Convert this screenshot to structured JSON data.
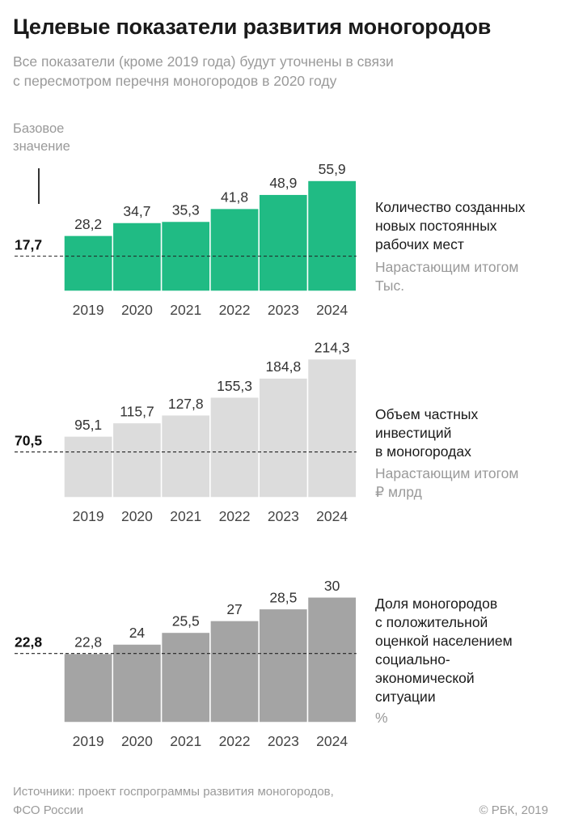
{
  "title": "Целевые показатели развития моногородов",
  "subtitle": [
    "Все показатели (кроме 2019 года) будут уточнены в связи",
    "с пересмотром перечня моногородов в 2020 году"
  ],
  "baseline_caption": [
    "Базовое",
    "значение"
  ],
  "footer": {
    "source": [
      "Источники: проект госпрограммы развития моногородов,",
      "ФСО России"
    ],
    "copyright": "© РБК, 2019"
  },
  "colors": {
    "green": "#20bb84",
    "light_gray": "#dcdcdc",
    "dark_gray": "#a4a4a4"
  },
  "chart_data": [
    {
      "type": "bar",
      "categories": [
        "2019",
        "2020",
        "2021",
        "2022",
        "2023",
        "2024"
      ],
      "values": [
        28.2,
        34.7,
        35.3,
        41.8,
        48.9,
        55.9
      ],
      "value_labels": [
        "28,2",
        "34,7",
        "35,3",
        "41,8",
        "48,9",
        "55,9"
      ],
      "baseline": 17.7,
      "baseline_label": "17,7",
      "description": [
        "Количество созданных",
        "новых постоянных",
        "рабочих мест"
      ],
      "unit": [
        "Нарастающим итогом",
        "Тыс."
      ],
      "color": "#20bb84"
    },
    {
      "type": "bar",
      "categories": [
        "2019",
        "2020",
        "2021",
        "2022",
        "2023",
        "2024"
      ],
      "values": [
        95.1,
        115.7,
        127.8,
        155.3,
        184.8,
        214.3
      ],
      "value_labels": [
        "95,1",
        "115,7",
        "127,8",
        "155,3",
        "184,8",
        "214,3"
      ],
      "baseline": 70.5,
      "baseline_label": "70,5",
      "description": [
        "Объем частных",
        "инвестиций",
        "в моногородах"
      ],
      "unit": [
        "Нарастающим итогом",
        "₽ млрд"
      ],
      "color": "#dcdcdc"
    },
    {
      "type": "bar",
      "categories": [
        "2019",
        "2020",
        "2021",
        "2022",
        "2023",
        "2024"
      ],
      "values": [
        22.8,
        24,
        25.5,
        27,
        28.5,
        30
      ],
      "value_labels": [
        "22,8",
        "24",
        "25,5",
        "27",
        "28,5",
        "30"
      ],
      "baseline": 22.8,
      "baseline_label": "22,8",
      "description": [
        "Доля моногородов",
        "с положительной",
        "оценкой населением",
        "социально-",
        "экономической",
        "ситуации"
      ],
      "unit": [
        "%"
      ],
      "color": "#a4a4a4"
    }
  ]
}
